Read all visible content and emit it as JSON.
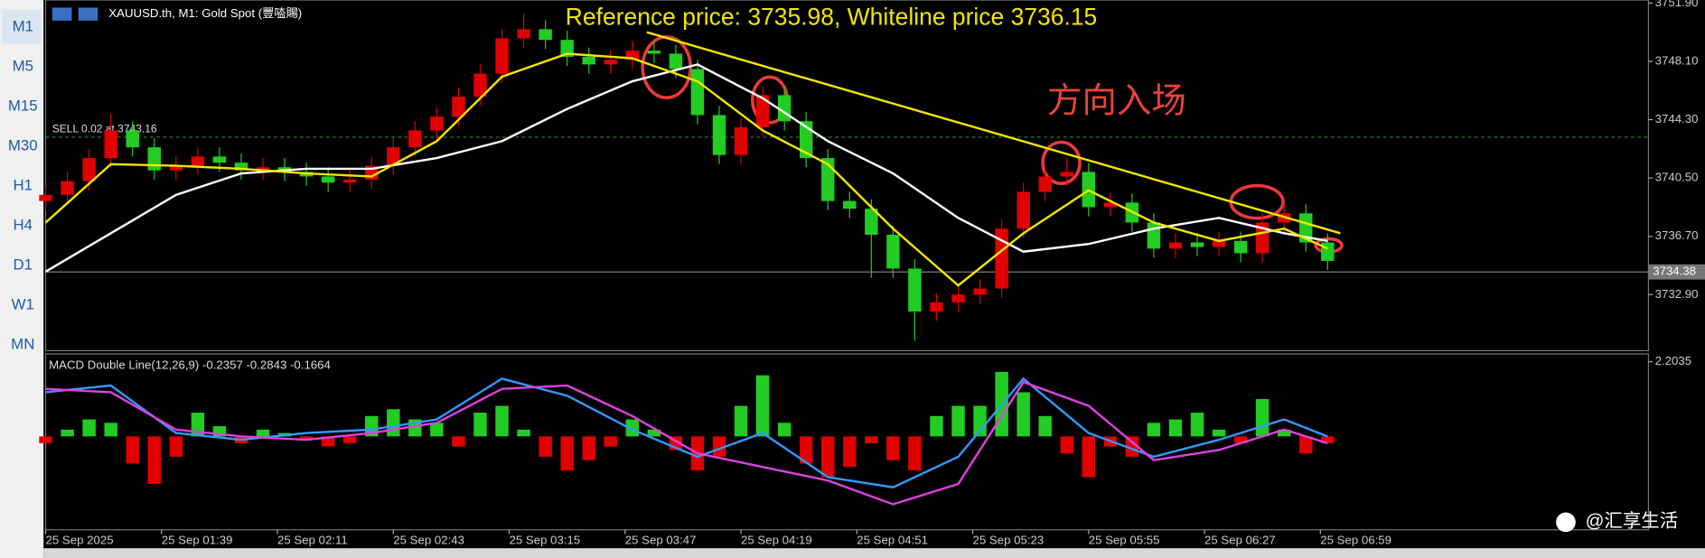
{
  "toolbar": {
    "timeframes": [
      "M1",
      "M5",
      "M15",
      "M30",
      "H1",
      "H4",
      "D1",
      "W1",
      "MN"
    ]
  },
  "symbol_label": "XAUUSD.th, M1:  Gold Spot (豐㗐賜)",
  "watermark": "@汇享生活",
  "chart_data": [
    {
      "type": "candlestick",
      "title": "Reference price: 3735.98, Whiteline price 3736.15",
      "annotation": "方向入场",
      "sell_label": "SELL 0.02 at 3743.16",
      "sell_price": 3743.16,
      "bid": 3734.38,
      "up_color": "#e00000",
      "down_color": "#22cc22",
      "x": [
        0,
        6,
        12,
        18,
        24,
        30,
        36,
        42,
        48,
        54,
        60,
        66,
        72,
        78,
        84,
        90,
        96,
        102,
        108,
        114,
        120,
        126,
        132,
        138,
        144,
        150,
        156,
        162,
        168,
        174,
        180,
        186,
        192,
        198,
        204,
        210,
        216,
        222,
        228,
        234,
        240,
        246,
        252,
        258,
        264,
        270,
        276,
        282,
        288,
        294,
        300,
        306,
        312,
        318,
        324,
        330,
        336,
        342,
        348,
        354
      ],
      "open": [
        3739.0,
        3739.4,
        3740.3,
        3741.8,
        3743.6,
        3742.5,
        3741.0,
        3741.3,
        3741.9,
        3741.5,
        3741.0,
        3741.2,
        3740.9,
        3740.6,
        3740.2,
        3740.4,
        3741.3,
        3742.5,
        3743.6,
        3744.5,
        3745.8,
        3747.3,
        3749.6,
        3750.2,
        3749.5,
        3748.4,
        3747.9,
        3748.2,
        3748.8,
        3748.6,
        3747.6,
        3744.6,
        3742.0,
        3743.8,
        3745.9,
        3744.2,
        3741.8,
        3739.0,
        3738.5,
        3736.8,
        3734.6,
        3731.8,
        3732.4,
        3732.9,
        3733.3,
        3737.2,
        3739.6,
        3740.6,
        3740.9,
        3738.6,
        3738.9,
        3737.6,
        3735.9,
        3736.3,
        3736.0,
        3736.4,
        3735.6,
        3737.6,
        3738.2,
        3736.3
      ],
      "high": [
        3740.0,
        3740.9,
        3742.4,
        3744.7,
        3744.2,
        3743.1,
        3741.9,
        3742.5,
        3742.5,
        3742.1,
        3741.8,
        3741.8,
        3741.5,
        3741.2,
        3741.0,
        3741.9,
        3743.1,
        3744.2,
        3745.1,
        3746.4,
        3747.9,
        3750.2,
        3751.2,
        3750.8,
        3750.1,
        3749.0,
        3748.8,
        3749.4,
        3749.4,
        3749.2,
        3748.2,
        3745.2,
        3744.4,
        3746.5,
        3746.5,
        3744.8,
        3742.4,
        3739.6,
        3739.1,
        3737.4,
        3735.2,
        3733.0,
        3733.5,
        3733.9,
        3737.8,
        3740.2,
        3741.2,
        3741.8,
        3741.5,
        3739.5,
        3739.5,
        3738.2,
        3736.9,
        3736.9,
        3737.0,
        3737.0,
        3738.2,
        3738.8,
        3738.8,
        3736.9
      ],
      "low": [
        3738.4,
        3738.8,
        3739.7,
        3741.2,
        3741.9,
        3740.4,
        3740.4,
        3740.7,
        3740.9,
        3740.4,
        3740.4,
        3740.3,
        3740.0,
        3739.6,
        3739.6,
        3739.8,
        3740.7,
        3741.9,
        3743.0,
        3743.9,
        3745.2,
        3746.7,
        3749.0,
        3748.9,
        3747.8,
        3747.3,
        3747.3,
        3747.6,
        3748.0,
        3747.0,
        3744.0,
        3741.4,
        3741.4,
        3743.2,
        3743.6,
        3741.2,
        3738.4,
        3737.9,
        3734.0,
        3734.0,
        3729.9,
        3731.2,
        3731.8,
        3732.3,
        3732.7,
        3736.6,
        3739.0,
        3740.0,
        3738.0,
        3738.0,
        3737.0,
        3735.3,
        3735.3,
        3735.4,
        3735.4,
        3735.0,
        3735.0,
        3737.0,
        3735.7,
        3734.5
      ],
      "close": [
        3739.4,
        3740.3,
        3741.8,
        3743.6,
        3742.5,
        3741.0,
        3741.3,
        3741.9,
        3741.5,
        3741.0,
        3741.2,
        3740.9,
        3740.6,
        3740.2,
        3740.4,
        3741.3,
        3742.5,
        3743.6,
        3744.5,
        3745.8,
        3747.3,
        3749.6,
        3750.2,
        3749.5,
        3748.4,
        3747.9,
        3748.2,
        3748.8,
        3748.6,
        3747.6,
        3744.6,
        3742.0,
        3743.8,
        3745.9,
        3744.2,
        3741.8,
        3739.0,
        3738.5,
        3736.8,
        3734.6,
        3731.8,
        3732.4,
        3732.9,
        3733.3,
        3737.2,
        3739.6,
        3740.6,
        3740.9,
        3738.6,
        3738.9,
        3737.6,
        3735.9,
        3736.3,
        3736.0,
        3736.4,
        3735.6,
        3737.6,
        3738.2,
        3736.3,
        3735.1
      ],
      "lines": [
        {
          "color": "#ffffff",
          "x": [
            0,
            18,
            36,
            54,
            72,
            90,
            108,
            126,
            144,
            162,
            180,
            198,
            216,
            234,
            252,
            270,
            288,
            306,
            324,
            342,
            354
          ],
          "values": [
            3734.4,
            3736.9,
            3739.4,
            3740.8,
            3741.1,
            3741.1,
            3741.8,
            3742.9,
            3745.0,
            3746.8,
            3747.9,
            3745.7,
            3742.9,
            3740.8,
            3737.9,
            3735.7,
            3736.2,
            3737.2,
            3737.9,
            3736.9,
            3736.4
          ]
        },
        {
          "color": "#f2e600",
          "x": [
            0,
            18,
            36,
            54,
            72,
            90,
            108,
            126,
            144,
            162,
            180,
            198,
            216,
            234,
            252,
            270,
            288,
            306,
            324,
            342,
            354
          ],
          "values": [
            3737.6,
            3741.4,
            3741.3,
            3741.1,
            3740.8,
            3740.6,
            3742.9,
            3747.1,
            3748.6,
            3748.3,
            3746.8,
            3743.6,
            3741.4,
            3737.2,
            3733.5,
            3736.9,
            3739.7,
            3737.6,
            3736.4,
            3737.2,
            3735.9
          ]
        }
      ],
      "trendline": {
        "color": "#f2e600",
        "x": [
          166,
          357.5
        ],
        "values": [
          3750.0,
          3736.9
        ]
      },
      "xlim": [
        0,
        442.6
      ],
      "xticks": [
        {
          "value": 0,
          "label": "25 Sep 2025"
        },
        {
          "value": 32,
          "label": "25 Sep 01:39"
        },
        {
          "value": 64,
          "label": "25 Sep 02:11"
        },
        {
          "value": 96,
          "label": "25 Sep 02:43"
        },
        {
          "value": 128,
          "label": "25 Sep 03:15"
        },
        {
          "value": 160,
          "label": "25 Sep 03:47"
        },
        {
          "value": 192,
          "label": "25 Sep 04:19"
        },
        {
          "value": 224,
          "label": "25 Sep 04:51"
        },
        {
          "value": 256,
          "label": "25 Sep 05:23"
        },
        {
          "value": 288,
          "label": "25 Sep 05:55"
        },
        {
          "value": 320,
          "label": "25 Sep 06:27"
        },
        {
          "value": 352,
          "label": "25 Sep 06:59"
        }
      ],
      "ylim": [
        3729.25,
        3752.1
      ],
      "yticks": [
        {
          "value": 3751.9,
          "label": "3751.90"
        },
        {
          "value": 3748.1,
          "label": "3748.10"
        },
        {
          "value": 3744.3,
          "label": "3744.30"
        },
        {
          "value": 3740.5,
          "label": "3740.50"
        },
        {
          "value": 3736.7,
          "label": "3736.70"
        },
        {
          "value": 3732.9,
          "label": "3732.90"
        }
      ]
    },
    {
      "type": "macd",
      "title": "MACD Double Line(12,26,9) -0.2357 -0.2843 -0.1664",
      "up_color": "#22cc22",
      "down_color": "#e00000",
      "x": [
        0,
        6,
        12,
        18,
        24,
        30,
        36,
        42,
        48,
        54,
        60,
        66,
        72,
        78,
        84,
        90,
        96,
        102,
        108,
        114,
        120,
        126,
        132,
        138,
        144,
        150,
        156,
        162,
        168,
        174,
        180,
        186,
        192,
        198,
        204,
        210,
        216,
        222,
        228,
        234,
        240,
        246,
        252,
        258,
        264,
        270,
        276,
        282,
        288,
        294,
        300,
        306,
        312,
        318,
        324,
        330,
        336,
        342,
        348,
        354
      ],
      "values": [
        -0.2,
        0.2,
        0.5,
        0.4,
        -0.8,
        -1.4,
        -0.6,
        0.7,
        0.3,
        -0.2,
        0.2,
        0.1,
        -0.1,
        -0.3,
        -0.2,
        0.6,
        0.8,
        0.5,
        0.4,
        -0.3,
        0.7,
        0.9,
        0.2,
        -0.6,
        -1.0,
        -0.7,
        -0.3,
        0.5,
        0.2,
        -0.4,
        -1.0,
        -0.6,
        0.9,
        1.8,
        0.4,
        -0.8,
        -1.2,
        -0.9,
        -0.2,
        -0.7,
        -1.0,
        0.6,
        0.9,
        0.9,
        1.9,
        1.3,
        0.6,
        -0.5,
        -1.2,
        -0.3,
        -0.6,
        0.4,
        0.5,
        0.7,
        0.2,
        -0.2,
        1.1,
        0.2,
        -0.5,
        -0.2
      ],
      "lines": [
        {
          "color": "#3399ff",
          "x": [
            0,
            18,
            36,
            54,
            72,
            90,
            108,
            126,
            144,
            162,
            180,
            198,
            216,
            234,
            252,
            270,
            288,
            306,
            324,
            342,
            354
          ],
          "values": [
            1.3,
            1.5,
            0.1,
            -0.1,
            0.1,
            0.2,
            0.5,
            1.7,
            1.2,
            0.2,
            -0.6,
            0.1,
            -1.2,
            -1.5,
            -0.6,
            1.7,
            0.1,
            -0.6,
            -0.1,
            0.5,
            0.0
          ]
        },
        {
          "color": "#e040e0",
          "x": [
            0,
            18,
            36,
            54,
            72,
            90,
            108,
            126,
            144,
            162,
            180,
            198,
            216,
            234,
            252,
            270,
            288,
            306,
            324,
            342,
            354
          ],
          "values": [
            1.4,
            1.3,
            0.2,
            0.0,
            -0.1,
            0.1,
            0.4,
            1.4,
            1.5,
            0.6,
            -0.5,
            -0.9,
            -1.3,
            -2.0,
            -1.4,
            1.6,
            0.9,
            -0.7,
            -0.4,
            0.2,
            -0.2
          ]
        }
      ],
      "xlim": [
        0,
        442.6
      ],
      "ylim": [
        -2.75,
        2.43
      ],
      "yticks": [
        2.2035
      ]
    }
  ]
}
